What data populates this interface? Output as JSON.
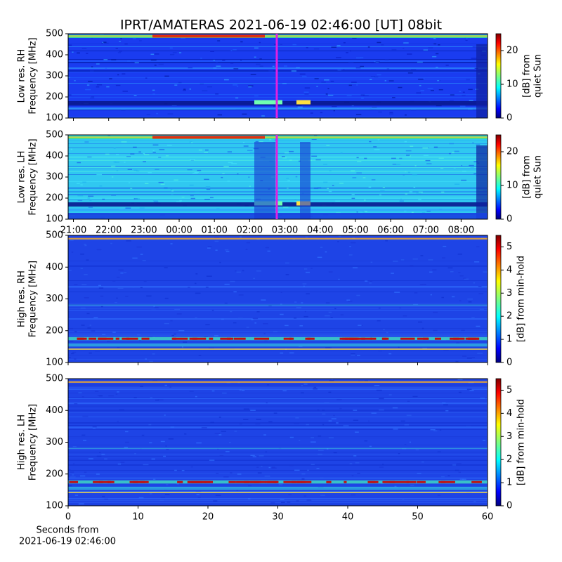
{
  "chart_data": [
    {
      "type": "heatmap",
      "title": "IPRT/AMATERAS 2021-06-19 02:46:00 [UT]   08bit",
      "ylabel": [
        "Low res. RH",
        "Frequency [MHz]"
      ],
      "ylim": [
        100,
        500
      ],
      "yticks": [
        100,
        200,
        300,
        400,
        500
      ],
      "xlim": [
        20.85,
        32.75
      ],
      "xticks": [
        21,
        22,
        23,
        24,
        25,
        26,
        27,
        28,
        29,
        30,
        31,
        32
      ],
      "cursor_x": 26.77,
      "cursor_color": "#e020e0",
      "colormap": "jet",
      "colorbar_label": [
        "[dB] from",
        "quiet Sun"
      ],
      "clim": [
        0,
        25
      ],
      "cticks": [
        0,
        10,
        20
      ]
    },
    {
      "type": "heatmap",
      "ylabel": [
        "Low res. LH",
        "Frequency [MHz]"
      ],
      "ylim": [
        100,
        500
      ],
      "yticks": [
        100,
        200,
        300,
        400,
        500
      ],
      "xlim": [
        20.85,
        32.75
      ],
      "xticks": [
        {
          "value": 21,
          "label": "21:00"
        },
        {
          "value": 22,
          "label": "22:00"
        },
        {
          "value": 23,
          "label": "23:00"
        },
        {
          "value": 24,
          "label": "00:00"
        },
        {
          "value": 25,
          "label": "01:00"
        },
        {
          "value": 26,
          "label": "02:00"
        },
        {
          "value": 27,
          "label": "03:00"
        },
        {
          "value": 28,
          "label": "04:00"
        },
        {
          "value": 29,
          "label": "05:00"
        },
        {
          "value": 30,
          "label": "06:00"
        },
        {
          "value": 31,
          "label": "07:00"
        },
        {
          "value": 32,
          "label": "08:00"
        }
      ],
      "cursor_x": 26.77,
      "cursor_color": "#e020e0",
      "colormap": "jet",
      "colorbar_label": [
        "[dB] from",
        "quiet Sun"
      ],
      "clim": [
        0,
        25
      ],
      "cticks": [
        0,
        10,
        20
      ]
    },
    {
      "type": "heatmap",
      "ylabel": [
        "High res. RH",
        "Frequency [MHz]"
      ],
      "ylim": [
        100,
        500
      ],
      "yticks": [
        100,
        200,
        300,
        400,
        500
      ],
      "xlim": [
        0,
        60
      ],
      "xticks": [
        0,
        10,
        20,
        30,
        40,
        50,
        60
      ],
      "colormap": "jet",
      "colorbar_label": [
        "[dB] from min-hold"
      ],
      "clim": [
        0,
        5.5
      ],
      "cticks": [
        0,
        1,
        2,
        3,
        4,
        5
      ]
    },
    {
      "type": "heatmap",
      "ylabel": [
        "High res. LH",
        "Frequency [MHz]"
      ],
      "ylim": [
        100,
        500
      ],
      "yticks": [
        100,
        200,
        300,
        400,
        500
      ],
      "xlim": [
        0,
        60
      ],
      "xticks": [
        0,
        10,
        20,
        30,
        40,
        50,
        60
      ],
      "xlabel": [
        "Seconds from",
        "2021-06-19 02:46:00"
      ],
      "colormap": "jet",
      "colorbar_label": [
        "[dB] from min-hold"
      ],
      "clim": [
        0,
        5.5
      ],
      "cticks": [
        0,
        1,
        2,
        3,
        4,
        5
      ]
    }
  ]
}
